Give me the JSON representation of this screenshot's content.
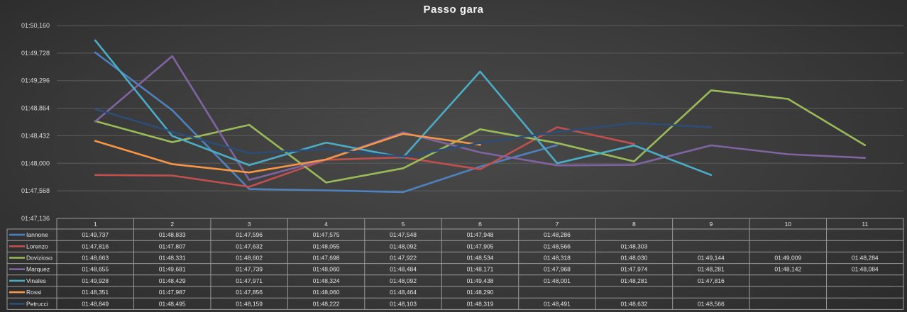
{
  "chart_data": {
    "type": "line",
    "title": "Passo gara",
    "xlabel": "",
    "ylabel": "",
    "categories": [
      "1",
      "2",
      "3",
      "4",
      "5",
      "6",
      "7",
      "8",
      "9",
      "10",
      "11"
    ],
    "y_tick_labels": [
      "01:50,160",
      "01:49,728",
      "01:49,296",
      "01:48,864",
      "01:48,432",
      "01:48,000",
      "01:47,568",
      "01:47,136"
    ],
    "ylim": [
      107.136,
      110.16
    ],
    "ytick_step": 0.432,
    "grid": true,
    "legend": "data-table-bottom",
    "series": [
      {
        "name": "Iannone",
        "color": "#4f81bd",
        "labels": [
          "01:49,737",
          "01:48,833",
          "01:47,596",
          "01:47,575",
          "01:47,548",
          "01:47,948",
          "01:48,286",
          null,
          null,
          null,
          null
        ],
        "values": [
          109.737,
          108.833,
          107.596,
          107.575,
          107.548,
          107.948,
          108.286,
          null,
          null,
          null,
          null
        ]
      },
      {
        "name": "Lorenzo",
        "color": "#c0504d",
        "labels": [
          "01:47,816",
          "01:47,807",
          "01:47,632",
          "01:48,055",
          "01:48,092",
          "01:47,905",
          "01:48,566",
          "01:48,303",
          null,
          null,
          null
        ],
        "values": [
          107.816,
          107.807,
          107.632,
          108.055,
          108.092,
          107.905,
          108.566,
          108.303,
          null,
          null,
          null
        ]
      },
      {
        "name": "Dovizioso",
        "color": "#9bbb59",
        "labels": [
          "01:48,663",
          "01:48,331",
          "01:48,602",
          "01:47,698",
          "01:47,922",
          "01:48,534",
          "01:48,318",
          "01:48,030",
          "01:49,144",
          "01:49,009",
          "01:48,284"
        ],
        "values": [
          108.663,
          108.331,
          108.602,
          107.698,
          107.922,
          108.534,
          108.318,
          108.03,
          109.144,
          109.009,
          108.284
        ]
      },
      {
        "name": "Marquez",
        "color": "#8064a2",
        "labels": [
          "01:48,655",
          "01:49,681",
          "01:47,739",
          "01:48,060",
          "01:48,484",
          "01:48,171",
          "01:47,968",
          "01:47,974",
          "01:48,281",
          "01:48,142",
          "01:48,084"
        ],
        "values": [
          108.655,
          109.681,
          107.739,
          108.06,
          108.484,
          108.171,
          107.968,
          107.974,
          108.281,
          108.142,
          108.084
        ]
      },
      {
        "name": "Vinales",
        "color": "#4bacc6",
        "labels": [
          "01:49,928",
          "01:48,429",
          "01:47,971",
          "01:48,324",
          "01:48,092",
          "01:49,438",
          "01:48,001",
          "01:48,281",
          "01:47,816",
          null,
          null
        ],
        "values": [
          109.928,
          108.429,
          107.971,
          108.324,
          108.092,
          109.438,
          108.001,
          108.281,
          107.816,
          null,
          null
        ]
      },
      {
        "name": "Rossi",
        "color": "#f79646",
        "labels": [
          "01:48,351",
          "01:47,987",
          "01:47,856",
          "01:48,060",
          "01:48,464",
          "01:48,290",
          null,
          null,
          null,
          null,
          null
        ],
        "values": [
          108.351,
          107.987,
          107.856,
          108.06,
          108.464,
          108.29,
          null,
          null,
          null,
          null,
          null
        ]
      },
      {
        "name": "Petrucci",
        "color": "#2c4d75",
        "labels": [
          "01:48,849",
          "01:48,495",
          "01:48,159",
          "01:48,222",
          "01:48,103",
          "01:48,319",
          "01:48,491",
          "01:48,632",
          "01:48,566",
          null,
          null
        ],
        "values": [
          108.849,
          108.495,
          108.159,
          108.222,
          108.103,
          108.319,
          108.491,
          108.632,
          108.566,
          null,
          null
        ]
      }
    ]
  }
}
